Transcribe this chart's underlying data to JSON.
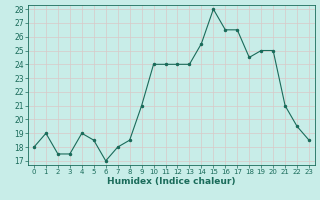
{
  "x": [
    0,
    1,
    2,
    3,
    4,
    5,
    6,
    7,
    8,
    9,
    10,
    11,
    12,
    13,
    14,
    15,
    16,
    17,
    18,
    19,
    20,
    21,
    22,
    23
  ],
  "y": [
    18,
    19,
    17.5,
    17.5,
    19,
    18.5,
    17,
    18,
    18.5,
    21,
    24,
    24,
    24,
    24,
    25.5,
    28,
    26.5,
    26.5,
    24.5,
    25,
    25,
    21,
    19.5,
    18.5
  ],
  "title": "",
  "xlabel": "Humidex (Indice chaleur)",
  "ylabel": "",
  "line_color": "#1a6b5a",
  "marker_color": "#1a6b5a",
  "bg_color": "#c8ede8",
  "grid_color": "#d9c8c8",
  "ylim": [
    17,
    28
  ],
  "xlim": [
    -0.5,
    23.5
  ],
  "yticks": [
    17,
    18,
    19,
    20,
    21,
    22,
    23,
    24,
    25,
    26,
    27,
    28
  ],
  "xticks": [
    0,
    1,
    2,
    3,
    4,
    5,
    6,
    7,
    8,
    9,
    10,
    11,
    12,
    13,
    14,
    15,
    16,
    17,
    18,
    19,
    20,
    21,
    22,
    23
  ]
}
